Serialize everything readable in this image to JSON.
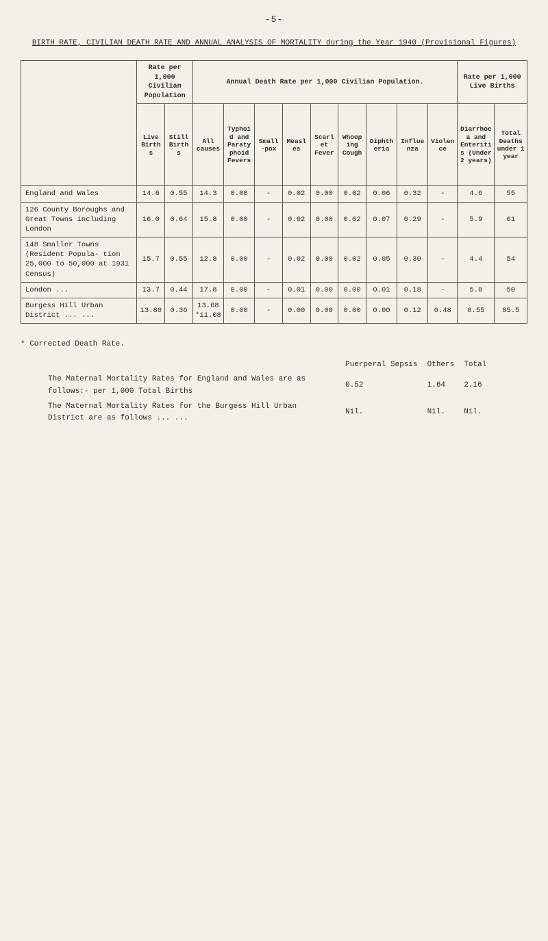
{
  "page_number": "-5-",
  "title": "BIRTH RATE, CIVILIAN DEATH RATE AND ANNUAL ANALYSIS OF MORTALITY during the Year 1940 (Provisional Figures)",
  "col_group_1": "Rate per 1,000 Civilian Population",
  "col_group_2": "Annual Death Rate per 1,000 Civilian Population.",
  "col_group_3": "Rate per 1,000 Live Births",
  "headers": {
    "area": "",
    "live_births": "Live Births",
    "still_births": "Still Births",
    "all_causes": "All causes",
    "typhoid": "Typhoid and Paratyphoid Fevers",
    "smallpox": "Small-pox",
    "measles": "Measles",
    "scarlet": "Scarlet Fever",
    "whooping": "Whooping Cough",
    "diphtheria": "Diphtheria",
    "influenza": "Influenza",
    "violence": "Violence",
    "diarrhoea": "Diarrhoea and Enteritis (Under 2 years)",
    "total_deaths": "Total Deaths under 1 year"
  },
  "rows": [
    {
      "area": "England and Wales",
      "live_births": "14.6",
      "still_births": "0.55",
      "all_causes": "14.3",
      "typhoid": "0.00",
      "smallpox": "-",
      "measles": "0.02",
      "scarlet": "0.00",
      "whooping": "0.02",
      "diphtheria": "0.06",
      "influenza": "0.32",
      "violence": "-",
      "diarrhoea": "4.6",
      "total_deaths": "55"
    },
    {
      "area": "126 County Boroughs and Great Towns including London",
      "live_births": "16.0",
      "still_births": "0.64",
      "all_causes": "15.8",
      "typhoid": "0.00",
      "smallpox": "-",
      "measles": "0.02",
      "scarlet": "0.00",
      "whooping": "0.02",
      "diphtheria": "0.07",
      "influenza": "0.29",
      "violence": "-",
      "diarrhoea": "5.9",
      "total_deaths": "61"
    },
    {
      "area": "148 Smaller Towns (Resident Popula- tion 25,000 to 50,000 at 1931 Census)",
      "live_births": "15.7",
      "still_births": "0.55",
      "all_causes": "12.8",
      "typhoid": "0.00",
      "smallpox": "-",
      "measles": "0.02",
      "scarlet": "0.00",
      "whooping": "0.02",
      "diphtheria": "0.05",
      "influenza": "0.30",
      "violence": "-",
      "diarrhoea": "4.4",
      "total_deaths": "54"
    },
    {
      "area": "London ...",
      "live_births": "13.7",
      "still_births": "0.44",
      "all_causes": "17.8",
      "typhoid": "0.00",
      "smallpox": "-",
      "measles": "0.01",
      "scarlet": "0.00",
      "whooping": "0.00",
      "diphtheria": "0.01",
      "influenza": "0.18",
      "violence": "-",
      "diarrhoea": "5.8",
      "total_deaths": "50"
    },
    {
      "area": "Burgess Hill Urban District ...  ...",
      "live_births": "13.80",
      "still_births": "0.36",
      "all_causes": "13.68 *11.08",
      "typhoid": "0.00",
      "smallpox": "-",
      "measles": "0.00",
      "scarlet": "0.00",
      "whooping": "0.00",
      "diphtheria": "0.00",
      "influenza": "0.12",
      "violence": "0.48",
      "diarrhoea": "8.55",
      "total_deaths": "85.5"
    }
  ],
  "footnote_star": "* Corrected Death Rate.",
  "note1": "The Maternal Mortality Rates for England and Wales are as follows:- per 1,000 Total Births",
  "note2": "The Maternal Mortality Rates for the Burgess Hill Urban District are as follows ...  ...",
  "footnote_cols": {
    "sepsis_label": "Puerperal Sepsis",
    "sepsis_val": "0.52",
    "others_label": "Others",
    "others_val": "1.64",
    "total_label": "Total",
    "total_val": "2.16",
    "nil1": "Nil.",
    "nil2": "Nil.",
    "nil3": "Nil."
  }
}
